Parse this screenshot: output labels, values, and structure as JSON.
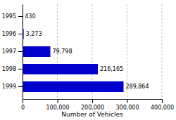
{
  "chart_data": {
    "type": "bar",
    "orientation": "horizontal",
    "categories": [
      "1995",
      "1996",
      "1997",
      "1998",
      "1999"
    ],
    "values": [
      430,
      3273,
      79798,
      216165,
      289864
    ],
    "value_labels": [
      "430",
      "3,273",
      "79,798",
      "216,165",
      "289,864"
    ],
    "data_labels": true,
    "color": "#0000cc",
    "xlabel": "Number of Vehicles",
    "xlim": [
      0,
      400000
    ],
    "xticks": [
      0,
      {
        "value": 100000,
        "label": "100,000"
      },
      {
        "value": 200000,
        "label": "200,000"
      },
      {
        "value": 300000,
        "label": "300,000"
      },
      {
        "value": 400000,
        "label": "400,000"
      }
    ],
    "grid": true
  }
}
